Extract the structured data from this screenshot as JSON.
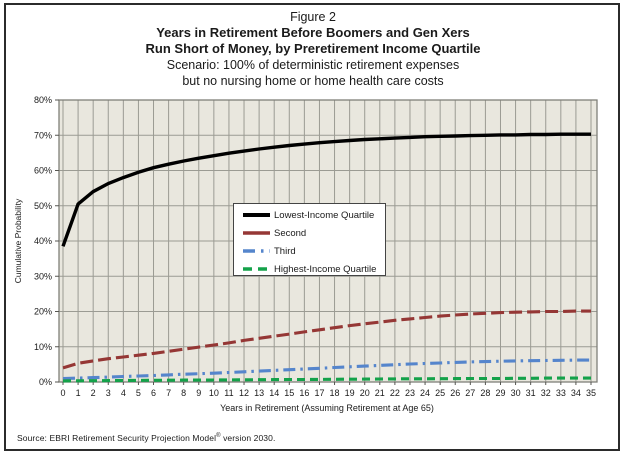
{
  "header": {
    "figure_label": "Figure 2",
    "title_line1": "Years in Retirement Before Boomers and Gen Xers",
    "title_line2": "Run Short of Money, by Preretirement Income Quartile",
    "subtitle_line1": "Scenario: 100% of deterministic retirement expenses",
    "subtitle_line2": "but no nursing home or home health care costs"
  },
  "chart_data": {
    "type": "line",
    "title": "Years in Retirement Before Boomers and Gen Xers Run Short of Money, by Preretirement Income Quartile",
    "xlabel": "Years in Retirement (Assuming Retirement at Age 65)",
    "ylabel": "Cumulative Probability",
    "xlim": [
      0,
      35
    ],
    "ylim": [
      0,
      80
    ],
    "grid": true,
    "legend_position": "inside-upper-center",
    "plot_bg_color": "#E9E7DE",
    "grid_color": "#9B9B93",
    "axis_color": "#7F7F78",
    "tick_label_color": "#1a1a1a",
    "x_ticks": [
      0,
      1,
      2,
      3,
      4,
      5,
      6,
      7,
      8,
      9,
      10,
      11,
      12,
      13,
      14,
      15,
      16,
      17,
      18,
      19,
      20,
      21,
      22,
      23,
      24,
      25,
      26,
      27,
      28,
      29,
      30,
      31,
      32,
      33,
      34,
      35
    ],
    "y_ticks": [
      "0%",
      "10%",
      "20%",
      "30%",
      "40%",
      "50%",
      "60%",
      "70%",
      "80%"
    ],
    "series": [
      {
        "name": "Lowest-Income Quartile",
        "color": "#000000",
        "dash": "solid",
        "values": [
          38.5,
          50.5,
          54.0,
          56.3,
          58.0,
          59.5,
          60.8,
          61.8,
          62.7,
          63.5,
          64.2,
          64.9,
          65.5,
          66.1,
          66.6,
          67.1,
          67.5,
          67.9,
          68.2,
          68.5,
          68.8,
          69.0,
          69.2,
          69.4,
          69.6,
          69.7,
          69.8,
          69.9,
          70.0,
          70.1,
          70.1,
          70.2,
          70.2,
          70.3,
          70.3,
          70.3
        ]
      },
      {
        "name": "Second",
        "color": "#953735",
        "dash": "long-dash",
        "values": [
          4.0,
          5.3,
          6.0,
          6.6,
          7.1,
          7.6,
          8.1,
          8.7,
          9.3,
          9.9,
          10.5,
          11.1,
          11.8,
          12.4,
          13.0,
          13.6,
          14.2,
          14.8,
          15.4,
          16.0,
          16.5,
          17.0,
          17.5,
          17.9,
          18.3,
          18.7,
          19.0,
          19.3,
          19.5,
          19.7,
          19.8,
          19.9,
          20.0,
          20.0,
          20.1,
          20.1
        ]
      },
      {
        "name": "Third",
        "color": "#5585CC",
        "dash": "dash-dot",
        "values": [
          1.0,
          1.1,
          1.25,
          1.4,
          1.55,
          1.7,
          1.85,
          2.0,
          2.2,
          2.35,
          2.5,
          2.7,
          2.9,
          3.1,
          3.3,
          3.5,
          3.7,
          3.9,
          4.1,
          4.3,
          4.5,
          4.7,
          4.9,
          5.1,
          5.25,
          5.4,
          5.55,
          5.7,
          5.8,
          5.9,
          6.0,
          6.05,
          6.1,
          6.15,
          6.2,
          6.2
        ]
      },
      {
        "name": "Highest-Income Quartile",
        "color": "#14A24A",
        "dash": "dash",
        "values": [
          0.3,
          0.33,
          0.36,
          0.4,
          0.42,
          0.45,
          0.48,
          0.5,
          0.53,
          0.55,
          0.58,
          0.6,
          0.63,
          0.65,
          0.68,
          0.7,
          0.72,
          0.75,
          0.78,
          0.8,
          0.82,
          0.85,
          0.87,
          0.9,
          0.92,
          0.94,
          0.96,
          0.98,
          1.0,
          1.0,
          1.05,
          1.05,
          1.1,
          1.1,
          1.1,
          1.1
        ]
      }
    ]
  },
  "footer": {
    "source_prefix": "Source: EBRI Retirement Security Projection Model",
    "source_sup": "®",
    "source_suffix": " version 2030."
  }
}
